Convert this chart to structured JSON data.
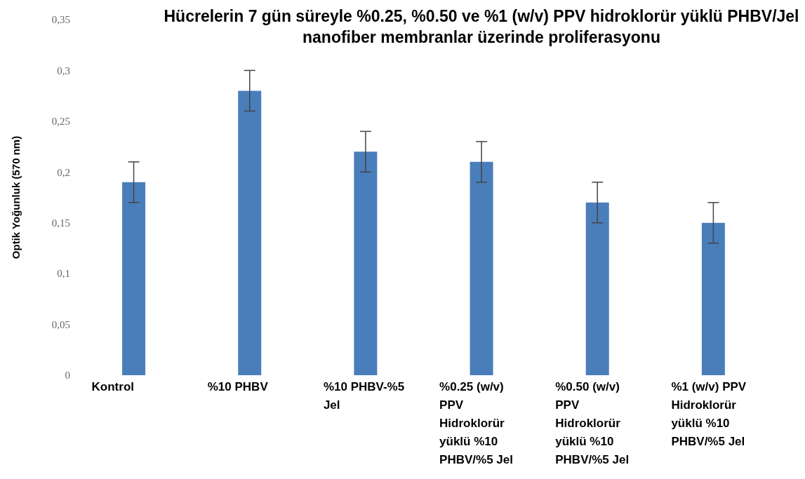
{
  "chart_data": {
    "type": "bar",
    "title": "Hücrelerin 7 gün süreyle %0.25, %0.50 ve %1 (w/v) PPV hidroklorür yüklü PHBV/Jel nanofiber membranlar üzerinde proliferasyonu",
    "ylabel": "Optik Yoğunluk (570 nm)",
    "categories": [
      "Kontrol",
      "%10 PHBV",
      "%10 PHBV-%5 Jel",
      "%0.25 (w/v) PPV Hidroklorür yüklü %10 PHBV/%5 Jel",
      "%0.50 (w/v) PPV Hidroklorür yüklü %10 PHBV/%5 Jel",
      "%1 (w/v) PPV Hidroklorür yüklü %10 PHBV/%5 Jel"
    ],
    "values": [
      0.19,
      0.28,
      0.22,
      0.21,
      0.17,
      0.15
    ],
    "errors": [
      0.02,
      0.02,
      0.02,
      0.02,
      0.02,
      0.02
    ],
    "color": "#4a7ebb",
    "ylim": [
      0,
      0.35
    ],
    "yticks": [
      0,
      {
        "value": 0.05,
        "label": "0,05"
      },
      {
        "value": 0.1,
        "label": "0,1"
      },
      {
        "value": 0.15,
        "label": "0,15"
      },
      {
        "value": 0.2,
        "label": "0,2"
      },
      {
        "value": 0.25,
        "label": "0,25"
      },
      {
        "value": 0.3,
        "label": "0,3"
      },
      {
        "value": 0.35,
        "label": "0,35"
      }
    ],
    "grid": false,
    "legend": false
  }
}
